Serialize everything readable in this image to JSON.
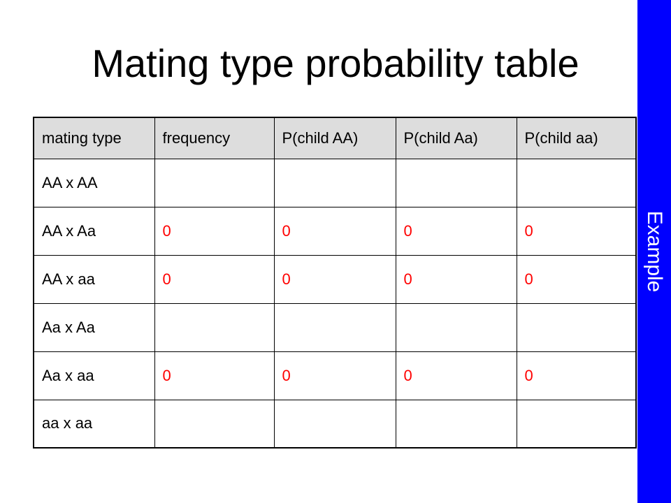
{
  "title": "Mating type probability table",
  "side_label": "Example",
  "colors": {
    "side_band": "#0000ff",
    "zero_value": "#ff0000",
    "header_bg": "#dddddd"
  },
  "table": {
    "headers": [
      "mating type",
      "frequency",
      "P(child AA)",
      "P(child Aa)",
      "P(child aa)"
    ],
    "rows": [
      {
        "mating_type": "AA x AA",
        "frequency": "",
        "p_AA": "",
        "p_Aa": "",
        "p_aa": ""
      },
      {
        "mating_type": "AA x Aa",
        "frequency": "0",
        "p_AA": "0",
        "p_Aa": "0",
        "p_aa": "0"
      },
      {
        "mating_type": "AA x aa",
        "frequency": "0",
        "p_AA": "0",
        "p_Aa": "0",
        "p_aa": "0"
      },
      {
        "mating_type": "Aa x Aa",
        "frequency": "",
        "p_AA": "",
        "p_Aa": "",
        "p_aa": ""
      },
      {
        "mating_type": "Aa x aa",
        "frequency": "0",
        "p_AA": "0",
        "p_Aa": "0",
        "p_aa": "0"
      },
      {
        "mating_type": "aa x aa",
        "frequency": "",
        "p_AA": "",
        "p_Aa": "",
        "p_aa": ""
      }
    ]
  }
}
